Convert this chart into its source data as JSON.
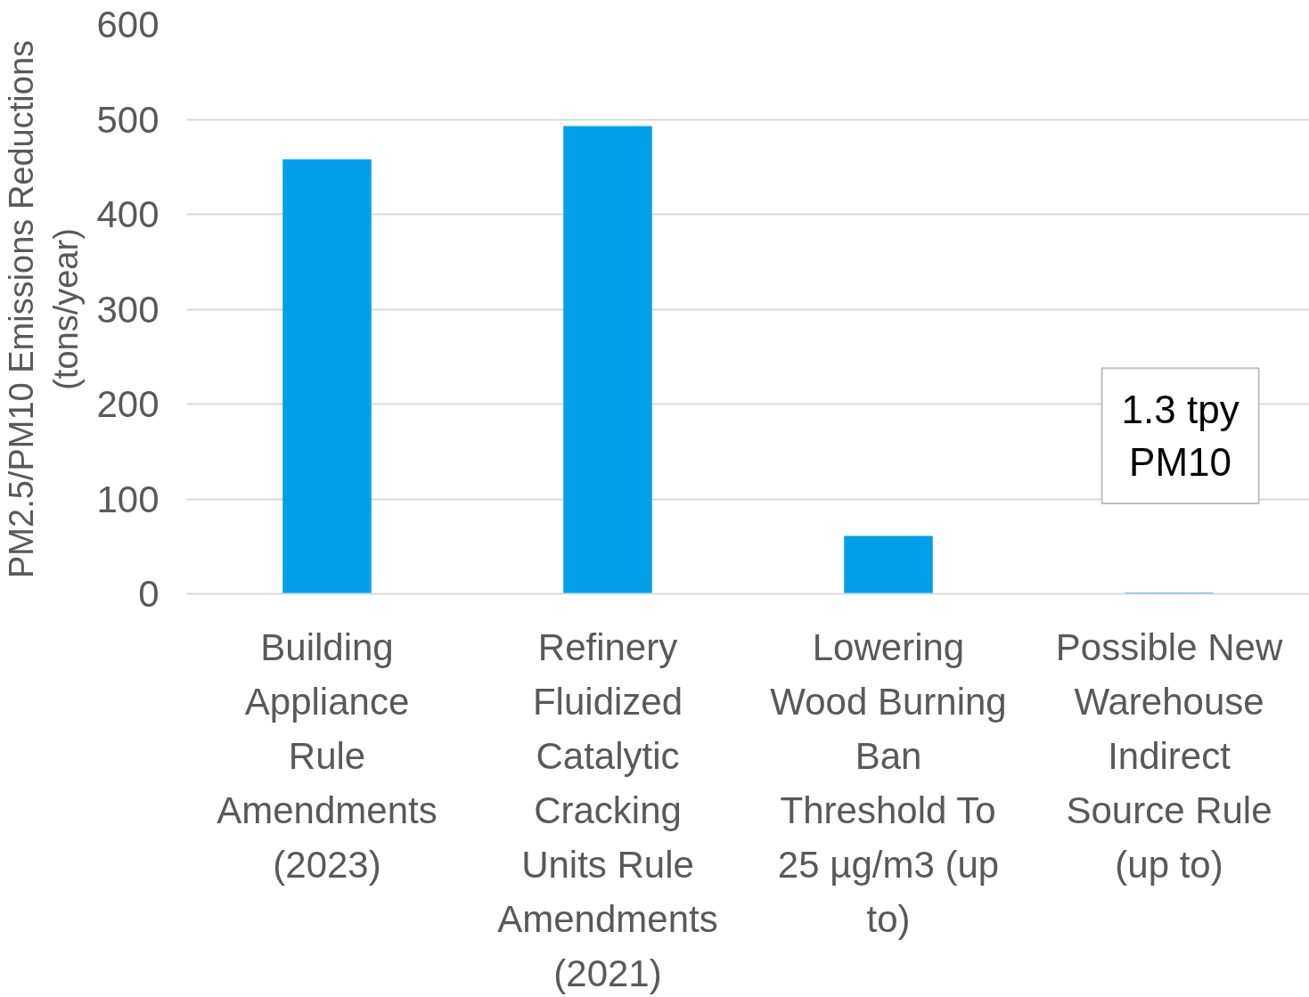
{
  "chart_data": {
    "type": "bar",
    "ylabel": "PM2.5/PM10 Emissions Reductions (tons/year)",
    "categories": [
      "Building Appliance Rule Amendments (2023)",
      "Refinery Fluidized Catalytic Cracking Units Rule Amendments (2021)",
      "Lowering Wood Burning Ban Threshold To 25 µg/m3 (up to)",
      "Possible New Warehouse Indirect Source Rule (up to)"
    ],
    "values": [
      458,
      493,
      61,
      1.3
    ],
    "color": "#00a0ea",
    "ylim": [
      0,
      600
    ],
    "yticks": [
      0,
      100,
      200,
      300,
      400,
      500,
      600
    ],
    "grid": "y",
    "annotations": [
      {
        "text": "1.3 tpy PM10",
        "x": "Possible New Warehouse Indirect Source Rule (up to)",
        "y": 1.3
      }
    ]
  }
}
